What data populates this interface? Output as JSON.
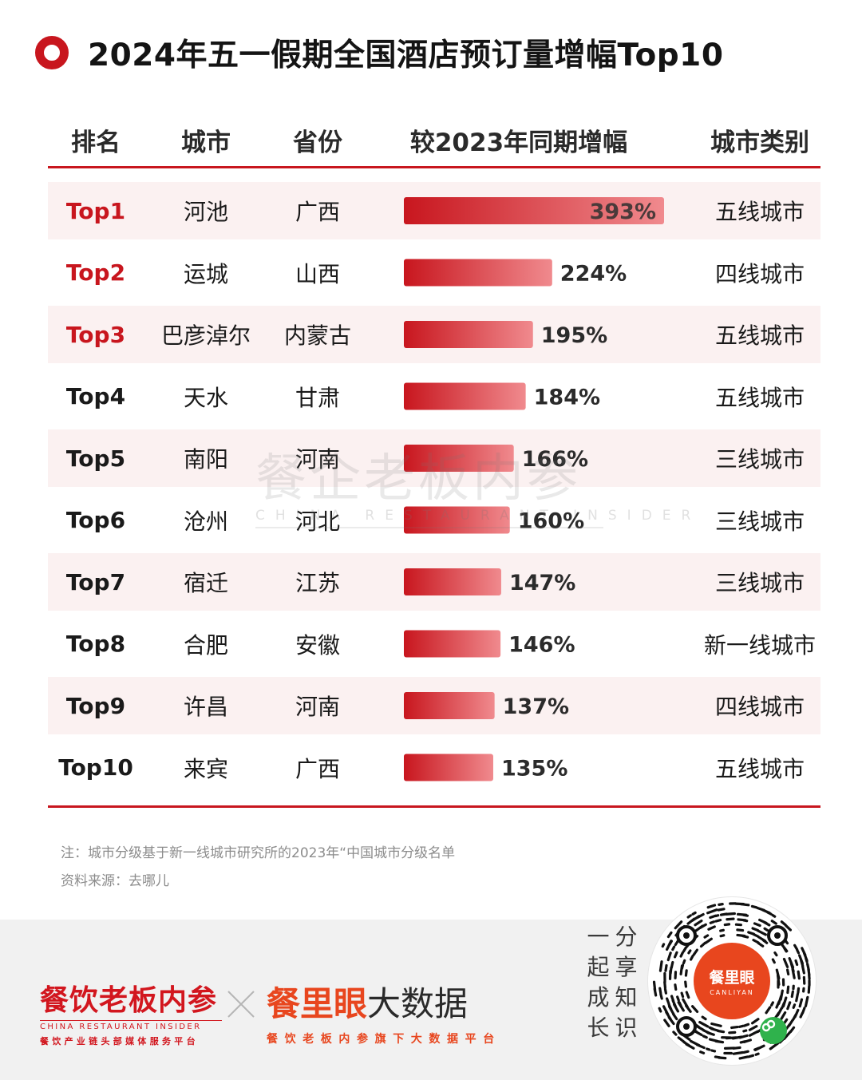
{
  "title": "2024年五一假期全国酒店预订量增幅Top10",
  "headers": {
    "rank": "排名",
    "city": "城市",
    "province": "省份",
    "growth": "较2023年同期增幅",
    "tier": "城市类别"
  },
  "rows": [
    {
      "rank": "Top1",
      "city": "河池",
      "province": "广西",
      "growth": "393%",
      "tier": "五线城市"
    },
    {
      "rank": "Top2",
      "city": "运城",
      "province": "山西",
      "growth": "224%",
      "tier": "四线城市"
    },
    {
      "rank": "Top3",
      "city": "巴彦淖尔",
      "province": "内蒙古",
      "growth": "195%",
      "tier": "五线城市"
    },
    {
      "rank": "Top4",
      "city": "天水",
      "province": "甘肃",
      "growth": "184%",
      "tier": "五线城市"
    },
    {
      "rank": "Top5",
      "city": "南阳",
      "province": "河南",
      "growth": "166%",
      "tier": "三线城市"
    },
    {
      "rank": "Top6",
      "city": "沧州",
      "province": "河北",
      "growth": "160%",
      "tier": "三线城市"
    },
    {
      "rank": "Top7",
      "city": "宿迁",
      "province": "江苏",
      "growth": "147%",
      "tier": "三线城市"
    },
    {
      "rank": "Top8",
      "city": "合肥",
      "province": "安徽",
      "growth": "146%",
      "tier": "新一线城市"
    },
    {
      "rank": "Top9",
      "city": "许昌",
      "province": "河南",
      "growth": "137%",
      "tier": "四线城市"
    },
    {
      "rank": "Top10",
      "city": "来宾",
      "province": "广西",
      "growth": "135%",
      "tier": "五线城市"
    }
  ],
  "chart_data": {
    "type": "bar",
    "orientation": "horizontal",
    "categories": [
      "河池",
      "运城",
      "巴彦淖尔",
      "天水",
      "南阳",
      "沧州",
      "宿迁",
      "合肥",
      "许昌",
      "来宾"
    ],
    "values": [
      393,
      224,
      195,
      184,
      166,
      160,
      147,
      146,
      137,
      135
    ],
    "unit": "%",
    "xlabel": "较2023年同期增幅",
    "ylabel": "",
    "xlim": [
      0,
      393
    ],
    "grid": false,
    "legend": "none",
    "bar_gradient": [
      "#c8161e",
      "#f08a8e"
    ]
  },
  "watermark": {
    "main": "餐企老板内参",
    "sub": "CHINA RESTAURANT INSIDER"
  },
  "notes": {
    "line1": "注：城市分级基于新一线城市研究所的2023年“中国城市分级名单",
    "line2": "资料来源：去哪儿"
  },
  "footer": {
    "brand1_main": "餐饮老板内参",
    "brand1_en": "CHINA RESTAURANT INSIDER",
    "brand1_sub": "餐饮产业链头部媒体服务平台",
    "brand2_red": "餐里眼",
    "brand2_dark": "大数据",
    "brand2_sub": "餐饮老板内参旗下大数据平台",
    "slogan": [
      "一",
      "分",
      "起",
      "享",
      "成",
      "知",
      "长",
      "识"
    ],
    "qr_name": "餐里眼",
    "qr_en": "CANLIYAN"
  },
  "colors": {
    "accent": "#c8161e",
    "shade": "#fbf1f1",
    "brand_orange": "#e8461e"
  }
}
